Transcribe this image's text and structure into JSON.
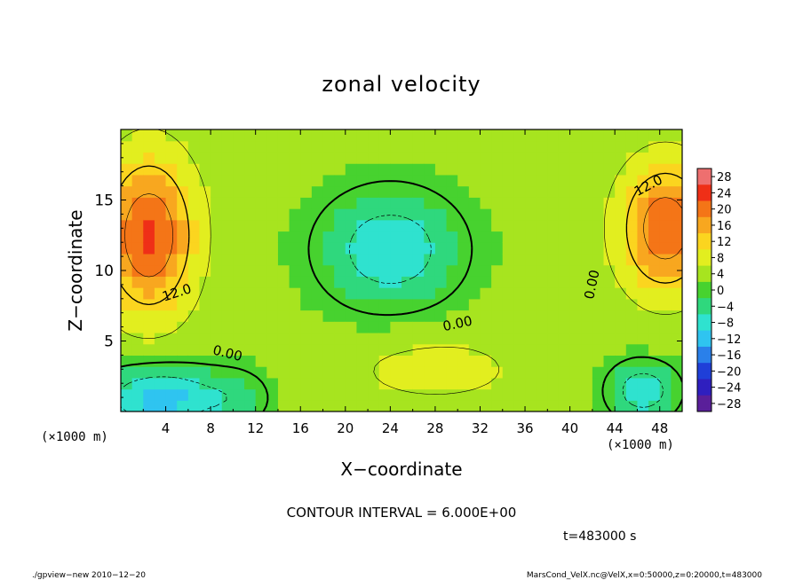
{
  "chart_data": {
    "type": "heatmap",
    "title": "zonal velocity",
    "xlabel": "X−coordinate",
    "ylabel": "Z−coordinate",
    "x_units_left": "(×1000 m)",
    "x_units_right": "(×1000 m)",
    "xlim": [
      0,
      50
    ],
    "ylim": [
      0,
      20
    ],
    "x_ticks": [
      "4",
      "8",
      "12",
      "16",
      "20",
      "24",
      "28",
      "32",
      "36",
      "40",
      "44",
      "48"
    ],
    "x_tick_values": [
      4,
      8,
      12,
      16,
      20,
      24,
      28,
      32,
      36,
      40,
      44,
      48
    ],
    "y_ticks": [
      "5",
      "10",
      "15"
    ],
    "y_tick_values": [
      5,
      10,
      15
    ],
    "colorbar_labels": [
      "28",
      "24",
      "20",
      "16",
      "12",
      "8",
      "4",
      "0",
      "−4",
      "−8",
      "−12",
      "−16",
      "−20",
      "−24",
      "−28"
    ],
    "colorbar_values": [
      28,
      24,
      20,
      16,
      12,
      8,
      4,
      0,
      -4,
      -8,
      -12,
      -16,
      -20,
      -24,
      -28
    ],
    "colorbar_colors": [
      "#ee6f6f",
      "#ef2f17",
      "#f47517",
      "#f8a71f",
      "#fbd51f",
      "#e2ee1f",
      "#a7e41f",
      "#47d22f",
      "#2fd87d",
      "#2fe2cf",
      "#2fc4f0",
      "#2a80ea",
      "#1f3fd8",
      "#2f1fbf",
      "#5a1f9a"
    ],
    "contour_labels": [
      "12.0",
      "0.00",
      "0.00",
      "0.00",
      "12.0"
    ],
    "contour_interval_text": "CONTOUR INTERVAL = 6.000E+00",
    "time_text": "t=483000 s",
    "footer_left": "./gpview−new  2010−12−20",
    "footer_right": "MarsCond_VelX.nc@VelX,x=0:50000,z=0:20000,t=483000",
    "field_blobs": [
      {
        "x": 2.5,
        "z": 12.5,
        "sx": 4.0,
        "sz": 5.5,
        "amp": 20
      },
      {
        "x": 48.5,
        "z": 13.0,
        "sx": 4.0,
        "sz": 4.5,
        "amp": 19
      },
      {
        "x": 24.0,
        "z": 11.5,
        "sx": 6.0,
        "sz": 4.0,
        "amp": -13
      },
      {
        "x": 3.5,
        "z": 1.0,
        "sx": 5.5,
        "sz": 2.2,
        "amp": -15
      },
      {
        "x": 46.5,
        "z": 1.5,
        "sx": 3.0,
        "sz": 2.0,
        "amp": -13
      },
      {
        "x": 28.0,
        "z": 3.0,
        "sx": 8.0,
        "sz": 2.5,
        "amp": 5
      },
      {
        "x": 10.5,
        "z": 1.0,
        "sx": 3.0,
        "sz": 2.0,
        "amp": -5
      }
    ],
    "field_base": 3
  }
}
